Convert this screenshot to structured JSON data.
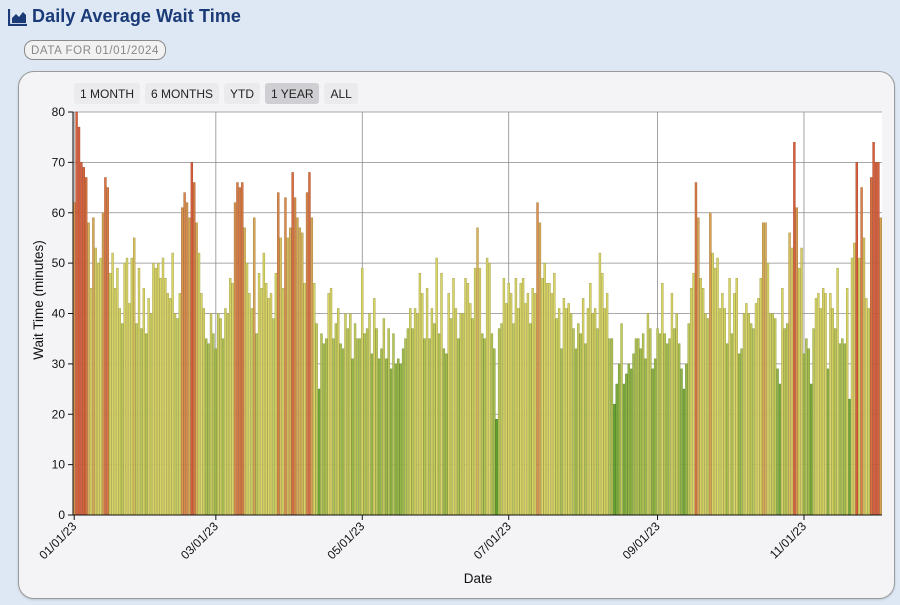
{
  "header": {
    "title": "Daily Average Wait Time",
    "icon": "area-chart-icon"
  },
  "badge": {
    "text": "DATA FOR 01/01/2024"
  },
  "range_buttons": [
    {
      "label": "1 MONTH",
      "active": false
    },
    {
      "label": "6 MONTHS",
      "active": false
    },
    {
      "label": "YTD",
      "active": false
    },
    {
      "label": "1 YEAR",
      "active": true
    },
    {
      "label": "ALL",
      "active": false
    }
  ],
  "colors": {
    "title": "#1b3a78",
    "low": "#5aa02c",
    "mid": "#d8d466",
    "high": "#d9603c"
  },
  "chart_data": {
    "type": "bar",
    "xlabel": "Date",
    "ylabel": "Wait Time (minutes)",
    "ylim": [
      0,
      80
    ],
    "y_ticks": [
      "0",
      "10",
      "20",
      "30",
      "40",
      "50",
      "60",
      "70",
      "80"
    ],
    "x_ticks": [
      "01/01/23",
      "03/01/23",
      "05/01/23",
      "07/01/23",
      "09/01/23",
      "11/01/23"
    ],
    "start_date": "2023-01-01",
    "grid": true,
    "values": [
      62,
      80,
      77,
      70,
      69,
      67,
      58,
      45,
      59,
      53,
      50,
      51,
      60,
      67,
      65,
      48,
      52,
      45,
      49,
      41,
      38,
      50,
      51,
      42,
      51,
      55,
      38,
      49,
      37,
      45,
      36,
      43,
      40,
      50,
      49,
      50,
      47,
      51,
      47,
      44,
      43,
      52,
      40,
      39,
      44,
      61,
      64,
      62,
      59,
      70,
      66,
      58,
      52,
      44,
      41,
      35,
      34,
      40,
      36,
      33,
      40,
      39,
      35,
      41,
      40,
      47,
      46,
      62,
      66,
      65,
      66,
      57,
      50,
      44,
      41,
      59,
      36,
      48,
      45,
      52,
      46,
      43,
      44,
      39,
      48,
      64,
      55,
      45,
      63,
      55,
      57,
      68,
      63,
      59,
      57,
      56,
      46,
      64,
      68,
      59,
      46,
      38,
      25,
      36,
      34,
      35,
      44,
      45,
      35,
      38,
      41,
      34,
      33,
      40,
      37,
      40,
      31,
      38,
      35,
      35,
      49,
      36,
      37,
      40,
      32,
      43,
      37,
      31,
      33,
      39,
      31,
      37,
      29,
      36,
      30,
      31,
      30,
      33,
      35,
      37,
      41,
      37,
      41,
      40,
      48,
      44,
      35,
      45,
      35,
      41,
      38,
      51,
      36,
      48,
      33,
      32,
      44,
      39,
      47,
      41,
      35,
      40,
      40,
      47,
      46,
      42,
      39,
      49,
      57,
      49,
      36,
      35,
      51,
      50,
      36,
      33,
      19,
      37,
      38,
      47,
      42,
      46,
      44,
      38,
      47,
      41,
      46,
      47,
      42,
      44,
      38,
      45,
      44,
      62,
      58,
      47,
      50,
      46,
      46,
      44,
      48,
      39,
      41,
      33,
      43,
      41,
      42,
      40,
      37,
      33,
      38,
      36,
      43,
      34,
      41,
      46,
      40,
      41,
      37,
      52,
      48,
      41,
      44,
      35,
      35,
      22,
      26,
      30,
      38,
      26,
      28,
      30,
      29,
      32,
      35,
      35,
      33,
      36,
      31,
      40,
      37,
      29,
      31,
      37,
      36,
      46,
      36,
      34,
      35,
      44,
      37,
      40,
      34,
      29,
      25,
      30,
      38,
      45,
      48,
      66,
      59,
      47,
      45,
      40,
      39,
      60,
      52,
      49,
      51,
      41,
      44,
      41,
      34,
      47,
      36,
      44,
      47,
      32,
      33,
      40,
      42,
      40,
      38,
      37,
      42,
      43,
      47,
      58,
      58,
      50,
      40,
      40,
      39,
      29,
      26,
      45,
      37,
      38,
      56,
      53,
      74,
      61,
      49,
      53,
      32,
      35,
      33,
      26,
      37,
      43,
      44,
      41,
      45,
      44,
      29,
      44,
      41,
      37,
      49,
      34,
      35,
      34,
      45,
      23,
      51,
      54,
      70,
      51,
      65,
      55,
      43,
      41,
      67,
      74,
      70,
      70,
      59
    ]
  }
}
